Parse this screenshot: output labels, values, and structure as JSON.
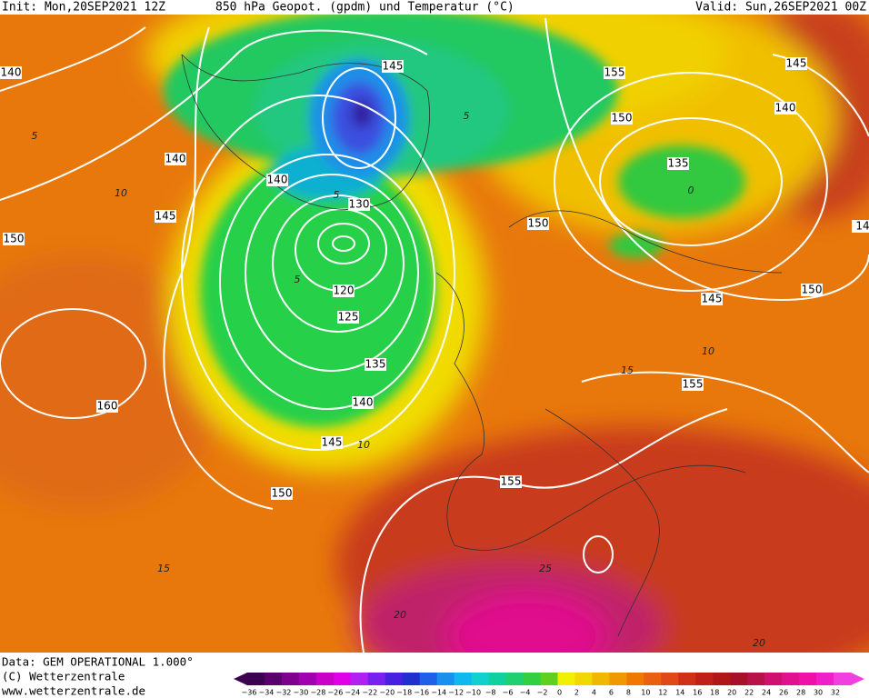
{
  "header": {
    "init": "Init: Mon,20SEP2021 12Z",
    "title": "850 hPa Geopot. (gpdm) und Temperatur (°C)",
    "valid": "Valid: Sun,26SEP2021 00Z"
  },
  "footer": [
    "Data: GEM OPERATIONAL 1.000°",
    "(C) Wetterzentrale",
    "www.wetterzentrale.de"
  ],
  "geopotential_labels": [
    140,
    140,
    145,
    150,
    160,
    150,
    145,
    140,
    135,
    125,
    120,
    130,
    140,
    145,
    155,
    150,
    135,
    140,
    145,
    150,
    145,
    150,
    155,
    155,
    14
  ],
  "temperature_labels": [
    5,
    10,
    5,
    10,
    15,
    20,
    25,
    20,
    10,
    15,
    5,
    0,
    5
  ],
  "colorbar": {
    "labels": [
      "−36",
      "−34",
      "−32",
      "−30",
      "−28",
      "−26",
      "−24",
      "−22",
      "−20",
      "−18",
      "−16",
      "−14",
      "−12",
      "−10",
      "−8",
      "−6",
      "−4",
      "−2",
      "0",
      "2",
      "4",
      "6",
      "8",
      "10",
      "12",
      "14",
      "16",
      "18",
      "20",
      "22",
      "24",
      "26",
      "28",
      "30",
      "32"
    ],
    "colors": [
      "#3c0050",
      "#5a006e",
      "#80008e",
      "#a000b0",
      "#c800c8",
      "#e000e8",
      "#b020f0",
      "#7820f0",
      "#4820e0",
      "#2030d0",
      "#2060e8",
      "#1890f0",
      "#10b8f0",
      "#10d0d0",
      "#10d0a0",
      "#20d070",
      "#30d040",
      "#60d020",
      "#f0f000",
      "#f0d800",
      "#f0b800",
      "#f09800",
      "#f07800",
      "#e86010",
      "#e04818",
      "#d03018",
      "#c02018",
      "#b01818",
      "#a8102a",
      "#b81048",
      "#d01070",
      "#e01090",
      "#f010a8",
      "#f020c8",
      "#f040e0"
    ]
  }
}
